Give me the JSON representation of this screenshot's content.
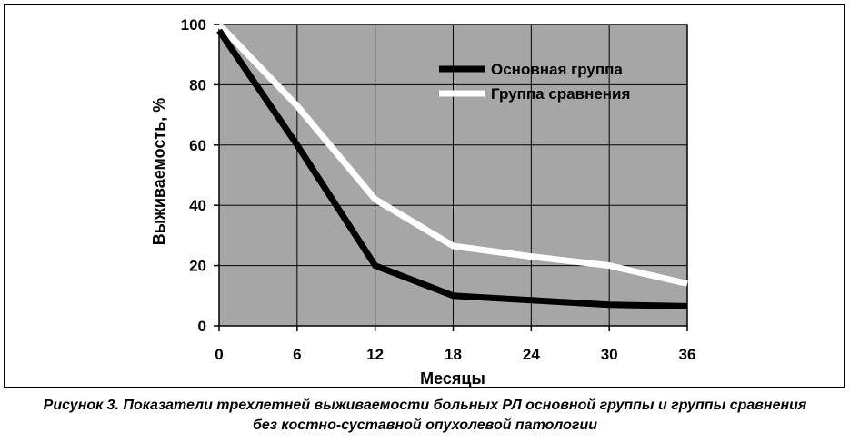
{
  "chart_data": {
    "type": "line",
    "x": [
      0,
      6,
      12,
      18,
      24,
      30,
      36
    ],
    "xlabel": "Месяцы",
    "ylabel": "Выживаемость, %",
    "xlim": [
      0,
      36
    ],
    "ylim": [
      0,
      100
    ],
    "xticks": [
      "0",
      "6",
      "12",
      "18",
      "24",
      "30",
      "36"
    ],
    "yticks": [
      "0",
      "20",
      "40",
      "60",
      "80",
      "100"
    ],
    "grid": true,
    "legend_position": "top-right",
    "plot_background": "#a6a6a6",
    "series": [
      {
        "name": "Основная группа",
        "color": "#000000",
        "values": [
          98,
          60,
          20,
          10,
          8.5,
          7,
          6.5
        ]
      },
      {
        "name": "Группа сравнения",
        "color": "#ffffff",
        "values": [
          100,
          73,
          42,
          26.5,
          23,
          20,
          14
        ]
      }
    ]
  },
  "caption": {
    "line1": "Рисунок 3. Показатели трехлетней выживаемости больных РЛ основной группы и группы сравнения",
    "line2": "без костно-суставной опухолевой патологии"
  }
}
